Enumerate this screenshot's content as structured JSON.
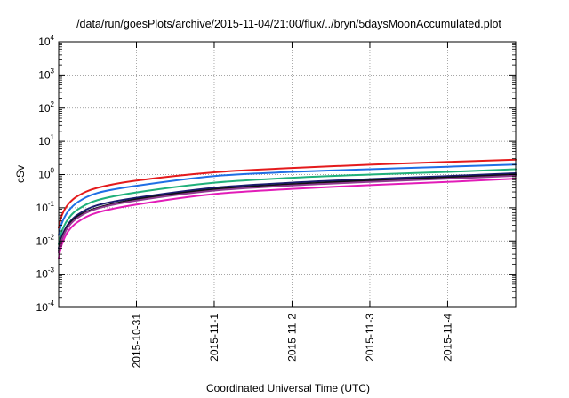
{
  "chart_data": {
    "type": "line",
    "title": "/data/run/goesPlots/archive/2015-11-04/21:00/flux/../bryn/5daysMoonAccumulated.plot",
    "xlabel": "Coordinated Universal Time (UTC)",
    "ylabel": "cSv",
    "y_scale": "log",
    "ylim": [
      0.0001,
      10000
    ],
    "y_ticks": [
      {
        "base": "10",
        "exp": "4"
      },
      {
        "base": "10",
        "exp": "3"
      },
      {
        "base": "10",
        "exp": "2"
      },
      {
        "base": "10",
        "exp": "1"
      },
      {
        "base": "10",
        "exp": "0"
      },
      {
        "base": "10",
        "exp": "-1"
      },
      {
        "base": "10",
        "exp": "-2"
      },
      {
        "base": "10",
        "exp": "-3"
      },
      {
        "base": "10",
        "exp": "-4"
      }
    ],
    "xlim": [
      "2015-10-30T00:00",
      "2015-11-04T21:00"
    ],
    "x_ticks": [
      "2015-10-31",
      "2015-11-1",
      "2015-11-2",
      "2015-11-3",
      "2015-11-4"
    ],
    "grid": true,
    "legend": "none",
    "x": [
      "2015-10-30T00:00",
      "2015-10-30T01:00",
      "2015-10-30T03:00",
      "2015-10-30T06:00",
      "2015-10-30T12:00",
      "2015-10-31T00:00",
      "2015-11-01T00:00",
      "2015-11-02T00:00",
      "2015-11-03T00:00",
      "2015-11-04T00:00",
      "2015-11-04T21:00"
    ],
    "series": [
      {
        "color": "#e41a1c",
        "values": [
          0.025,
          0.06,
          0.13,
          0.23,
          0.4,
          0.66,
          1.17,
          1.57,
          1.98,
          2.4,
          2.8
        ]
      },
      {
        "color": "#1f6fe5",
        "values": [
          0.015,
          0.035,
          0.08,
          0.15,
          0.28,
          0.46,
          0.9,
          1.2,
          1.45,
          1.72,
          2.0
        ]
      },
      {
        "color": "#1fb07a",
        "values": [
          0.008,
          0.02,
          0.047,
          0.09,
          0.17,
          0.29,
          0.57,
          0.8,
          1.0,
          1.2,
          1.45
        ]
      },
      {
        "color": "#1a1a6e",
        "values": [
          0.006,
          0.014,
          0.033,
          0.063,
          0.12,
          0.2,
          0.4,
          0.57,
          0.73,
          0.9,
          1.1
        ]
      },
      {
        "color": "#111111",
        "values": [
          0.005,
          0.012,
          0.029,
          0.056,
          0.1,
          0.18,
          0.36,
          0.51,
          0.66,
          0.82,
          1.0
        ]
      },
      {
        "color": "#8e3b8f",
        "values": [
          0.0045,
          0.011,
          0.027,
          0.051,
          0.095,
          0.165,
          0.33,
          0.47,
          0.6,
          0.75,
          0.92
        ]
      },
      {
        "color": "#e21cb8",
        "values": [
          0.003,
          0.008,
          0.02,
          0.038,
          0.072,
          0.125,
          0.26,
          0.37,
          0.48,
          0.6,
          0.75
        ]
      }
    ]
  }
}
